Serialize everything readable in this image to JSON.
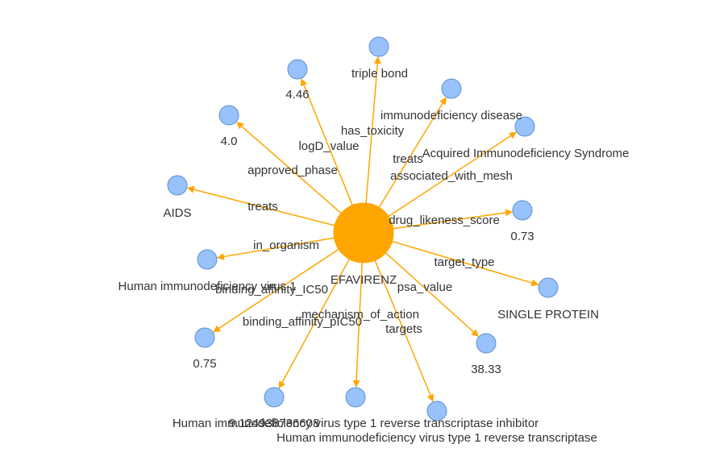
{
  "colors": {
    "center_node": "#ffa500",
    "leaf_node": "#97c2fc",
    "leaf_border": "#5b8fd6",
    "edge": "#ffa500",
    "text": "#333333"
  },
  "graph": {
    "center": {
      "id": "center",
      "label": "EFAVIRENZ"
    },
    "nodes": [
      {
        "id": "n_triple_bond",
        "label": ""
      },
      {
        "id": "n_4_46",
        "label": "4.46"
      },
      {
        "id": "n_immuno_disease",
        "label": ""
      },
      {
        "id": "n_4_0",
        "label": "4.0"
      },
      {
        "id": "n_acquired",
        "label": ""
      },
      {
        "id": "n_aids",
        "label": "AIDS"
      },
      {
        "id": "n_0_73",
        "label": "0.73"
      },
      {
        "id": "n_hiv1_org",
        "label": "Human immunodeficiency virus 1"
      },
      {
        "id": "n_single_protein",
        "label": "SINGLE PROTEIN"
      },
      {
        "id": "n_0_75",
        "label": "0.75"
      },
      {
        "id": "n_38_33",
        "label": "38.33"
      },
      {
        "id": "n_ic50",
        "label": "9.124938736608"
      },
      {
        "id": "n_rt_inhibitor",
        "label": "Human immunodeficiency virus type 1 reverse transcriptase inhibitor"
      },
      {
        "id": "n_rt",
        "label": "Human immunodeficiency virus type 1 reverse transcriptase"
      }
    ],
    "edges": [
      {
        "to": "n_triple_bond",
        "label": "triple bond"
      },
      {
        "to": "n_4_46",
        "label": "logD_value"
      },
      {
        "to": "n_immuno_disease",
        "label": "immunodeficiency disease"
      },
      {
        "to": "n_4_0",
        "label": "approved_phase"
      },
      {
        "to": "n_acquired",
        "label": "Acquired Immunodeficiency Syndrome"
      },
      {
        "to": "n_aids",
        "label": "treats"
      },
      {
        "to": "n_0_73",
        "label": "drug_likeness_score"
      },
      {
        "to": "n_hiv1_org",
        "label": "in_organism"
      },
      {
        "to": "n_single_protein",
        "label": "target_type"
      },
      {
        "to": "n_0_75",
        "label": "binding_affinity_pIC50"
      },
      {
        "to": "n_38_33",
        "label": "psa_value"
      },
      {
        "to": "n_ic50",
        "label": "binding_affinity_IC50"
      },
      {
        "to": "n_rt_inhibitor",
        "label": "mechanism_of_action"
      },
      {
        "to": "n_rt",
        "label": "targets"
      }
    ],
    "extra_labels": [
      {
        "text": "has_toxicity"
      },
      {
        "text": "treats"
      },
      {
        "text": "associated_with_mesh"
      }
    ]
  }
}
